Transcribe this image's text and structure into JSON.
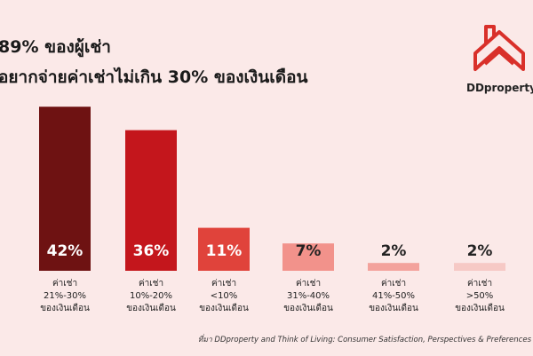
{
  "chart_data": {
    "type": "bar",
    "title": "89% ของผู้เช่า",
    "subtitle": "อยากจ่ายค่าเช่าไม่เกิน 30% ของเงินเดือน",
    "brand": "DDproperty",
    "categories": [
      "ค่าเช่า\n21%-30%\nของเงินเดือน",
      "ค่าเช่า\n10%-20%\nของเงินเดือน",
      "ค่าเช่า\n<10%\nของเงินเดือน",
      "ค่าเช่า\n31%-40%\nของเงินเดือน",
      "ค่าเช่า\n41%-50%\nของเงินเดือน",
      "ค่าเช่า\n>50%\nของเงินเดือน"
    ],
    "values": [
      42,
      36,
      11,
      7,
      2,
      2
    ],
    "value_labels": [
      "42%",
      "36%",
      "11%",
      "7%",
      "2%",
      "2%"
    ],
    "colors": [
      "#6e1212",
      "#c4161c",
      "#e0433b",
      "#f2928b",
      "#f3a29c",
      "#f6c9c5"
    ],
    "source": "ที่มา DDproperty and Think of Living: Consumer Satisfaction, Perspectives & Preferences"
  }
}
